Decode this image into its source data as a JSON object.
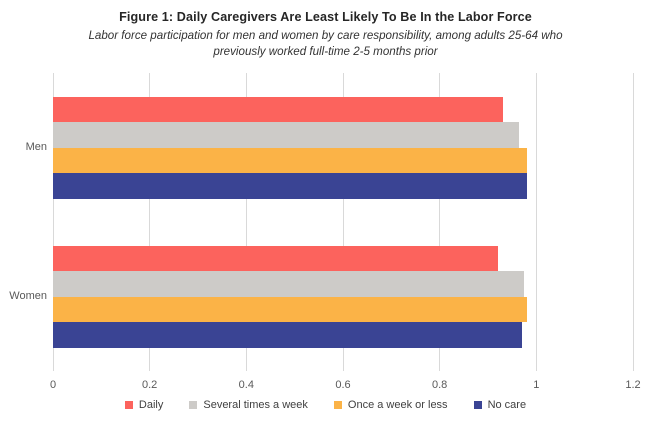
{
  "header": {
    "title": "Figure 1: Daily Caregivers Are Least Likely To Be In the Labor Force",
    "subtitle_line1": "Labor force participation for men and women by care responsibility, among adults 25-64 who",
    "subtitle_line2": "previously worked full-time 2-5 months prior"
  },
  "chart_data": {
    "type": "bar",
    "orientation": "horizontal",
    "title": "Figure 1: Daily Caregivers Are Least Likely To Be In the Labor Force",
    "subtitle": "Labor force participation for men and women by care responsibility, among adults 25-64 who previously worked full-time 2-5 months prior",
    "categories": [
      "Men",
      "Women"
    ],
    "series": [
      {
        "name": "Daily",
        "color": "#FC635D",
        "values": [
          0.93,
          0.92
        ]
      },
      {
        "name": "Several times a week",
        "color": "#CDCBC8",
        "values": [
          0.965,
          0.975
        ]
      },
      {
        "name": "Once a week or less",
        "color": "#FBB347",
        "values": [
          0.98,
          0.98
        ]
      },
      {
        "name": "No care",
        "color": "#3A4494",
        "values": [
          0.98,
          0.97
        ]
      }
    ],
    "xlabel": "",
    "ylabel": "",
    "xlim": [
      0,
      1.2
    ],
    "x_ticks": [
      "0",
      "0.2",
      "0.4",
      "0.6",
      "0.8",
      "1",
      "1.2"
    ],
    "grid": true,
    "gridline_color": "#d9d9d9",
    "legend_position": "bottom"
  }
}
